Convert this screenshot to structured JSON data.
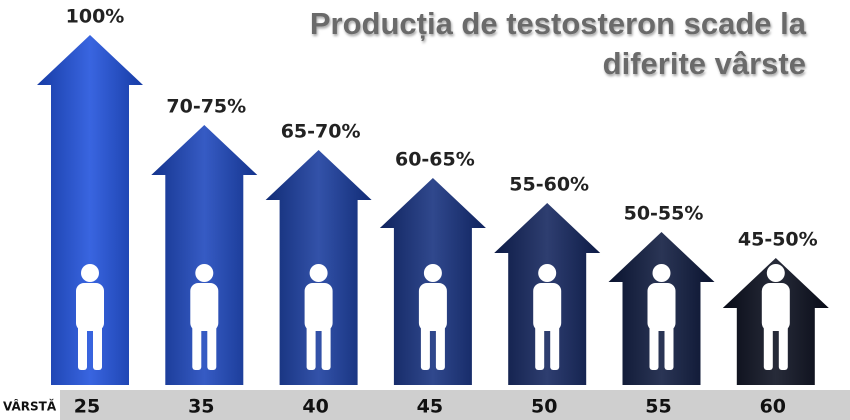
{
  "header": {
    "title_lines": [
      "Producția de testosteron scade la",
      "diferite vârste"
    ]
  },
  "axis_label": "VÂRSTĂ",
  "columns": [
    {
      "label": "100%",
      "age": "25"
    },
    {
      "label": "70-75%",
      "age": "35"
    },
    {
      "label": "65-70%",
      "age": "40"
    },
    {
      "label": "60-65%",
      "age": "45"
    },
    {
      "label": "55-60%",
      "age": "50"
    },
    {
      "label": "50-55%",
      "age": "55"
    },
    {
      "label": "45-50%",
      "age": "60"
    }
  ]
}
